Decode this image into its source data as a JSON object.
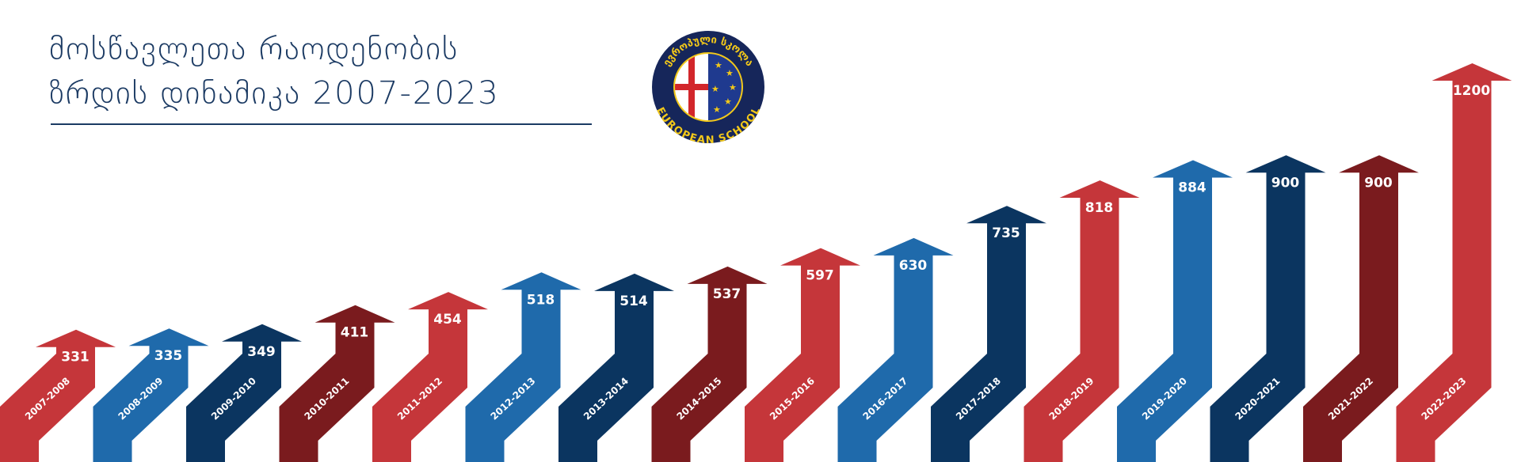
{
  "chart_data": {
    "type": "arrow",
    "title": [
      "მოსწავლეთა რაოდენობის",
      "ზრდის დინამიკა 2007-2023"
    ],
    "logo": {
      "top_text": "ევროპული სკოლა",
      "bottom_text": "EUROPEAN SCHOOL"
    },
    "categories": [
      "2007-2008",
      "2008-2009",
      "2009-2010",
      "2010-2011",
      "2011-2012",
      "2012-2013",
      "2013-2014",
      "2014-2015",
      "2015-2016",
      "2016-2017",
      "2017-2018",
      "2018-2019",
      "2019-2020",
      "2020-2021",
      "2021-2022",
      "2022-2023"
    ],
    "values": [
      331,
      335,
      349,
      411,
      454,
      518,
      514,
      537,
      597,
      630,
      735,
      818,
      884,
      900,
      900,
      1200
    ],
    "colors": [
      "#c5363a",
      "#1f6aab",
      "#0b3560",
      "#7a1b1e",
      "#c5363a",
      "#1f6aab",
      "#0b3560",
      "#7a1b1e",
      "#c5363a",
      "#1f6aab",
      "#0b3560",
      "#c5363a",
      "#1f6aab",
      "#0b3560",
      "#7a1b1e",
      "#c5363a"
    ]
  }
}
